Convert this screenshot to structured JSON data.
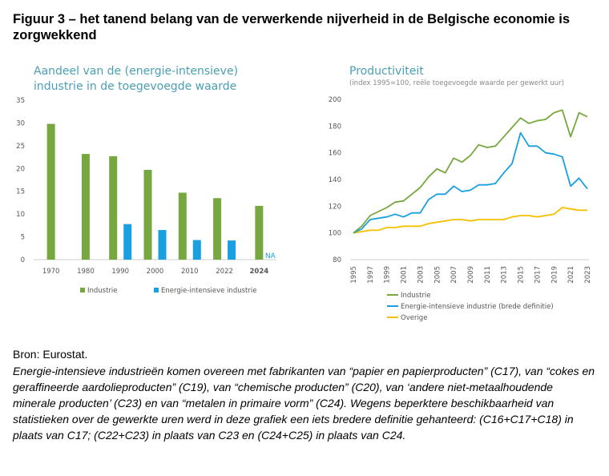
{
  "figure": {
    "title": "Figuur 3 – het tanend belang van de verwerkende nijverheid in de Belgische economie is zorgwekkend"
  },
  "colors": {
    "green": "#76a83f",
    "blue": "#1aa0e0",
    "yellow": "#f5c000",
    "title": "#4a9fb5"
  },
  "chart_data": [
    {
      "type": "bar",
      "title": "Aandeel van de (energie-intensieve) industrie in de toegevoegde waarde",
      "categories": [
        "1970",
        "1980",
        "1990",
        "2000",
        "2010",
        "2022",
        "2024"
      ],
      "ylim": [
        0,
        35
      ],
      "yticks": [
        0,
        5,
        10,
        15,
        20,
        25,
        30,
        35
      ],
      "series": [
        {
          "name": "Industrie",
          "color": "#76a83f",
          "values": [
            29.8,
            23.2,
            22.7,
            19.7,
            14.7,
            13.5,
            11.8
          ]
        },
        {
          "name": "Energie-intensieve industrie",
          "color": "#1aa0e0",
          "values": [
            null,
            null,
            7.8,
            6.5,
            4.3,
            4.2,
            null
          ]
        }
      ],
      "annotation": "NA",
      "highlight_category": "2024"
    },
    {
      "type": "line",
      "title": "Productiviteit",
      "subtitle": "(index 1995=100, reële toegevoegde waarde per gewerkt uur)",
      "x": [
        1995,
        1996,
        1997,
        1998,
        1999,
        2000,
        2001,
        2002,
        2003,
        2004,
        2005,
        2006,
        2007,
        2008,
        2009,
        2010,
        2011,
        2012,
        2013,
        2014,
        2015,
        2016,
        2017,
        2018,
        2019,
        2020,
        2021,
        2022,
        2023
      ],
      "xticks": [
        "1995",
        "1997",
        "1999",
        "2001",
        "2003",
        "2005",
        "2007",
        "2009",
        "2011",
        "2013",
        "2015",
        "2017",
        "2019",
        "2021",
        "2023"
      ],
      "ylim": [
        80,
        200
      ],
      "yticks": [
        80,
        100,
        120,
        140,
        160,
        180,
        200
      ],
      "series": [
        {
          "name": "Industrie",
          "color": "#76a83f",
          "values": [
            100,
            105,
            113,
            116,
            119,
            123,
            124,
            129,
            134,
            142,
            148,
            145,
            156,
            153,
            158,
            166,
            164,
            165,
            172,
            179,
            186,
            182,
            184,
            185,
            190,
            192,
            172,
            190,
            187
          ]
        },
        {
          "name": "Energie-intensieve industrie (brede definitie)",
          "color": "#1aa0e0",
          "values": [
            100,
            103,
            110,
            111,
            112,
            114,
            112,
            115,
            115,
            125,
            129,
            129,
            135,
            131,
            132,
            136,
            136,
            137,
            145,
            152,
            175,
            165,
            165,
            160,
            159,
            157,
            135,
            141,
            133
          ]
        },
        {
          "name": "Overige",
          "color": "#f5c000",
          "values": [
            100,
            101,
            102,
            102,
            104,
            104,
            105,
            105,
            105,
            107,
            108,
            109,
            110,
            110,
            109,
            110,
            110,
            110,
            110,
            112,
            113,
            113,
            112,
            113,
            114,
            119,
            118,
            117,
            117
          ]
        }
      ]
    }
  ],
  "source": "Bron: Eurostat.",
  "note": "Energie-intensieve industrieën komen overeen met fabrikanten van “papier en papierproducten” (C17), van “cokes en geraffineerde aardolieproducten” (C19), van “chemische producten” (C20), van ‘andere niet-metaalhoudende minerale producten’ (C23) en van “metalen in primaire vorm” (C24). Wegens beperktere beschikbaarheid van statistieken over de gewerkte uren werd in deze grafiek een iets bredere definitie gehanteerd: (C16+C17+C18) in plaats van C17; (C22+C23) in plaats van C23 en (C24+C25) in plaats van C24."
}
